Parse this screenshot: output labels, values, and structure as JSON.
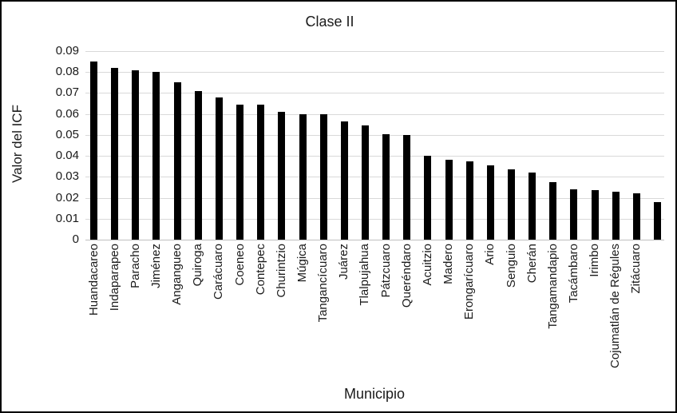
{
  "chart_data": {
    "type": "bar",
    "title": "Clase II",
    "xlabel": "Municipio",
    "ylabel": "Valor del ICF",
    "ylim": [
      0,
      0.09
    ],
    "y_ticks": [
      0,
      0.01,
      0.02,
      0.03,
      0.04,
      0.05,
      0.06,
      0.07,
      0.08,
      0.09
    ],
    "y_tick_labels": [
      "0",
      "0.01",
      "0.02",
      "0.03",
      "0.04",
      "0.05",
      "0.06",
      "0.07",
      "0.08",
      "0.09"
    ],
    "grid": true,
    "legend": false,
    "x_labels_rotated_90": true,
    "bar_color": "#000000",
    "gridline_color": "#d9d9d9",
    "axis_line_color": "#bfbfbf",
    "text_color": "#1a1a1a",
    "background_color": "#ffffff",
    "categories": [
      "Huandacareo",
      "Indaparapeo",
      "Paracho",
      "Jiménez",
      "Angangueo",
      "Quiroga",
      "Carácuaro",
      "Coeneo",
      "Contepec",
      "Churintzio",
      "Múgica",
      "Tangancícuaro",
      "Juárez",
      "Tlalpujahua",
      "Pátzcuaro",
      "Queréndaro",
      "Acuitzio",
      "Madero",
      "Erongarícuaro",
      "Ario",
      "Senguio",
      "Cherán",
      "Tangamandapio",
      "Tacámbaro",
      "Irimbo",
      "Cojumatlán de Régules",
      "Zitácuaro",
      ""
    ],
    "values": [
      0.085,
      0.082,
      0.081,
      0.08,
      0.075,
      0.071,
      0.068,
      0.0645,
      0.0645,
      0.061,
      0.06,
      0.06,
      0.0565,
      0.0545,
      0.0505,
      0.05,
      0.04,
      0.038,
      0.0375,
      0.0355,
      0.0335,
      0.032,
      0.0275,
      0.024,
      0.0235,
      0.023,
      0.022,
      0.018
    ]
  }
}
